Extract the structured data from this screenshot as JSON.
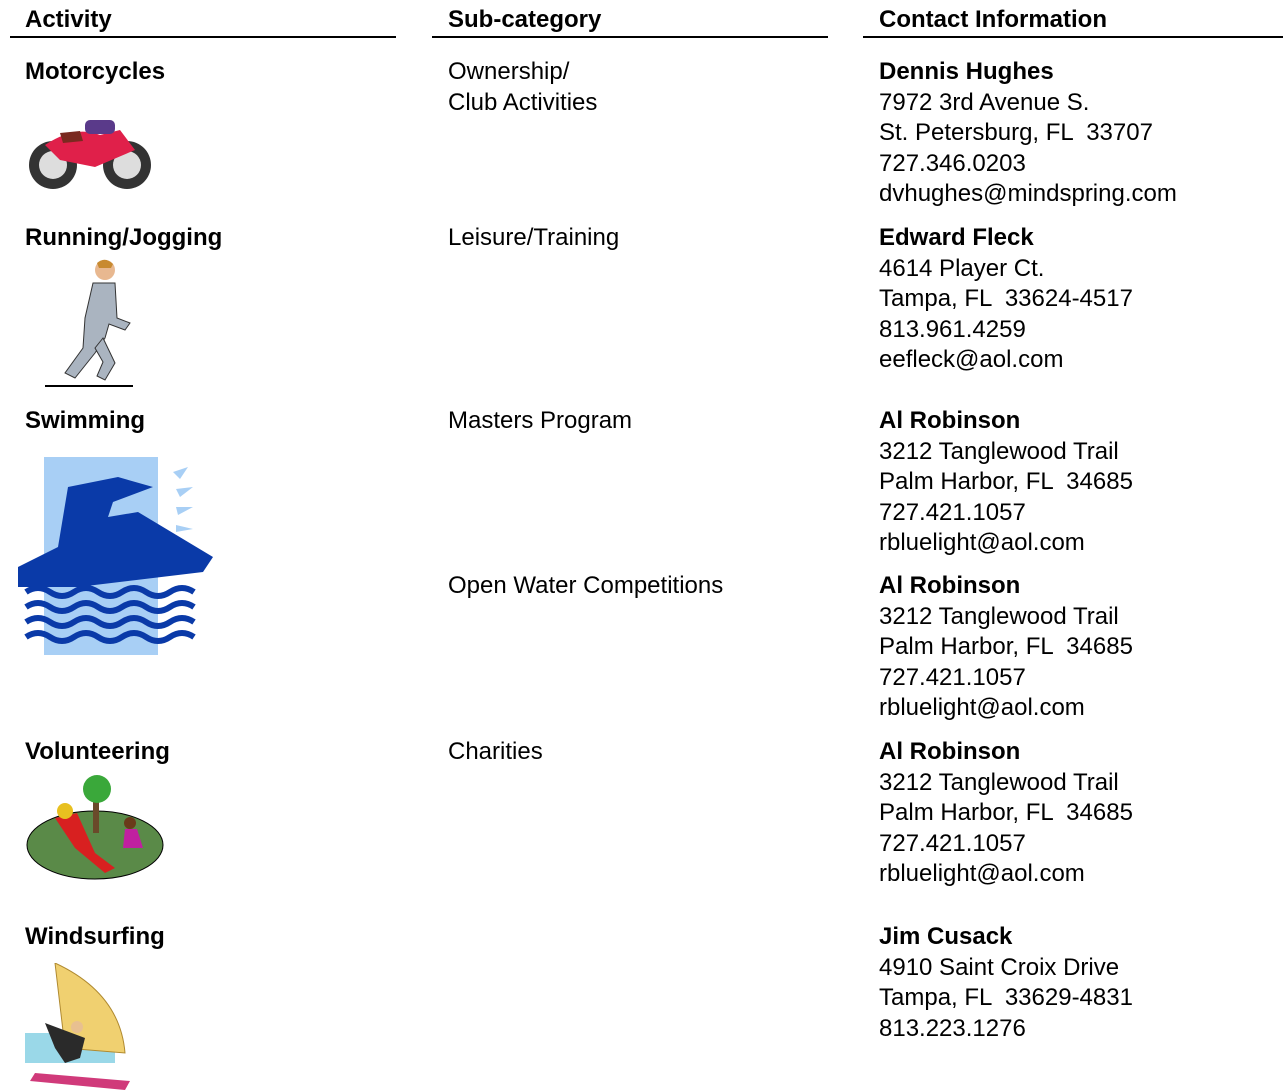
{
  "headers": [
    "Activity",
    "Sub-category",
    "Contact Information"
  ],
  "rows": [
    {
      "activity": "Motorcycles",
      "subcategory": [
        "Ownership/",
        "Club Activities"
      ],
      "contact": {
        "name": "Dennis Hughes",
        "lines": [
          "7972 3rd Avenue S.",
          "St. Petersburg, FL  33707",
          "727.346.0203",
          "dvhughes@mindspring.com"
        ]
      }
    },
    {
      "activity": "Running/Jogging",
      "subcategory": [
        "Leisure/Training"
      ],
      "contact": {
        "name": "Edward Fleck",
        "lines": [
          "4614 Player Ct.",
          "Tampa, FL  33624-4517",
          "813.961.4259",
          "eefleck@aol.com"
        ]
      }
    },
    {
      "activity": "Swimming",
      "subcategory": [
        "Masters Program"
      ],
      "contact": {
        "name": "Al Robinson",
        "lines": [
          "3212 Tanglewood Trail",
          "Palm Harbor, FL  34685",
          "727.421.1057",
          "rbluelight@aol.com"
        ]
      }
    },
    {
      "subcategory": [
        "Open Water Competitions"
      ],
      "contact": {
        "name": "Al Robinson",
        "lines": [
          "3212 Tanglewood Trail",
          "Palm Harbor, FL  34685",
          "727.421.1057",
          "rbluelight@aol.com"
        ]
      }
    },
    {
      "activity": "Volunteering",
      "subcategory": [
        "Charities"
      ],
      "contact": {
        "name": "Al Robinson",
        "lines": [
          "3212 Tanglewood Trail",
          "Palm Harbor, FL  34685",
          "727.421.1057",
          "rbluelight@aol.com"
        ]
      }
    },
    {
      "activity": "Windsurfing",
      "subcategory": [],
      "contact": {
        "name": "Jim Cusack",
        "lines": [
          "4910 Saint Croix Drive",
          "Tampa, FL  33629-4831",
          "813.223.1276"
        ]
      }
    }
  ]
}
